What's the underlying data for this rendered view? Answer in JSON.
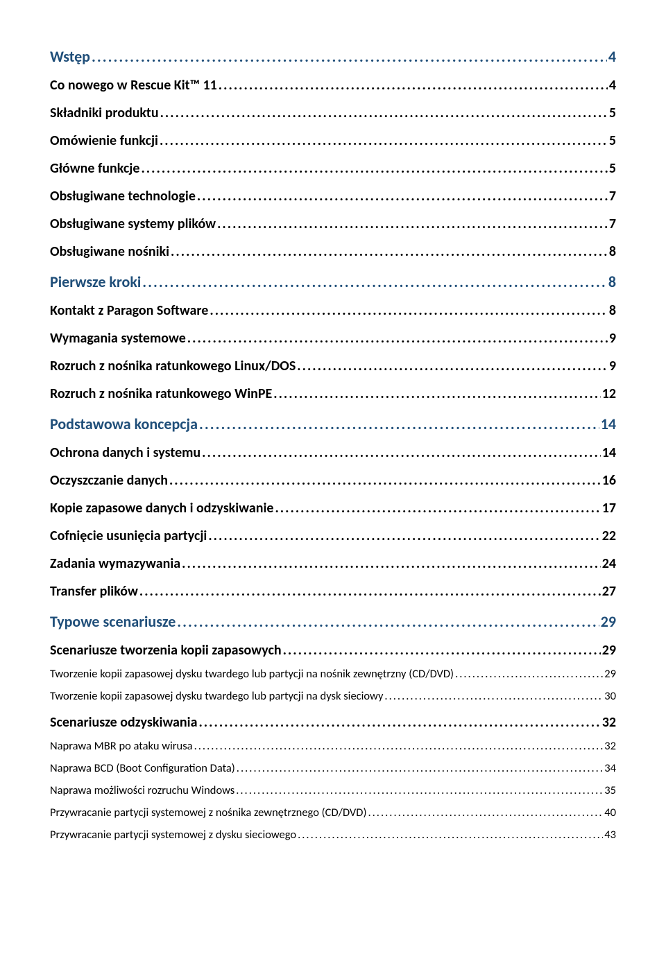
{
  "colors": {
    "heading1": "#1f4e79",
    "heading2": "#000000",
    "body": "#000000",
    "background": "#ffffff"
  },
  "fontsizes": {
    "lvl1": 22,
    "lvl2": 20,
    "lvl3": 16.5
  },
  "toc": [
    {
      "level": 1,
      "label": "Wstęp",
      "page": "4"
    },
    {
      "level": 2,
      "label": "Co nowego w Rescue Kit™ 11",
      "page": "4"
    },
    {
      "level": 2,
      "label": "Składniki produktu",
      "page": "5"
    },
    {
      "level": 2,
      "label": "Omówienie funkcji",
      "page": "5"
    },
    {
      "level": 2,
      "label": "Główne funkcje",
      "page": "5"
    },
    {
      "level": 2,
      "label": "Obsługiwane technologie",
      "page": "7"
    },
    {
      "level": 2,
      "label": "Obsługiwane systemy plików",
      "page": "7"
    },
    {
      "level": 2,
      "label": "Obsługiwane nośniki",
      "page": "8"
    },
    {
      "level": 1,
      "label": "Pierwsze kroki",
      "page": "8"
    },
    {
      "level": 2,
      "label": "Kontakt z Paragon Software",
      "page": "8"
    },
    {
      "level": 2,
      "label": "Wymagania systemowe",
      "page": "9"
    },
    {
      "level": 2,
      "label": "Rozruch z nośnika ratunkowego Linux/DOS",
      "page": "9"
    },
    {
      "level": 2,
      "label": "Rozruch z nośnika ratunkowego WinPE",
      "page": "12"
    },
    {
      "level": 1,
      "label": "Podstawowa koncepcja",
      "page": "14"
    },
    {
      "level": 2,
      "label": "Ochrona danych i systemu",
      "page": "14"
    },
    {
      "level": 2,
      "label": "Oczyszczanie danych",
      "page": "16"
    },
    {
      "level": 2,
      "label": "Kopie zapasowe danych i odzyskiwanie",
      "page": "17"
    },
    {
      "level": 2,
      "label": "Cofnięcie usunięcia partycji",
      "page": "22"
    },
    {
      "level": 2,
      "label": "Zadania wymazywania",
      "page": "24"
    },
    {
      "level": 2,
      "label": "Transfer plików",
      "page": "27"
    },
    {
      "level": 1,
      "label": "Typowe scenariusze",
      "page": "29"
    },
    {
      "level": 2,
      "label": "Scenariusze tworzenia kopii zapasowych",
      "page": "29"
    },
    {
      "level": 3,
      "label": "Tworzenie kopii zapasowej dysku twardego lub partycji na nośnik zewnętrzny (CD/DVD)",
      "page": "29"
    },
    {
      "level": 3,
      "label": "Tworzenie kopii zapasowej dysku twardego lub partycji na dysk sieciowy",
      "page": "30"
    },
    {
      "level": 2,
      "label": "Scenariusze odzyskiwania",
      "page": "32"
    },
    {
      "level": 3,
      "label": "Naprawa MBR po ataku wirusa",
      "page": "32"
    },
    {
      "level": 3,
      "label": "Naprawa BCD (Boot Configuration Data)",
      "page": "34"
    },
    {
      "level": 3,
      "label": "Naprawa możliwości rozruchu Windows",
      "page": "35"
    },
    {
      "level": 3,
      "label": "Przywracanie partycji systemowej z nośnika zewnętrznego (CD/DVD)",
      "page": "40"
    },
    {
      "level": 3,
      "label": "Przywracanie partycji systemowej z dysku sieciowego",
      "page": "43"
    }
  ]
}
